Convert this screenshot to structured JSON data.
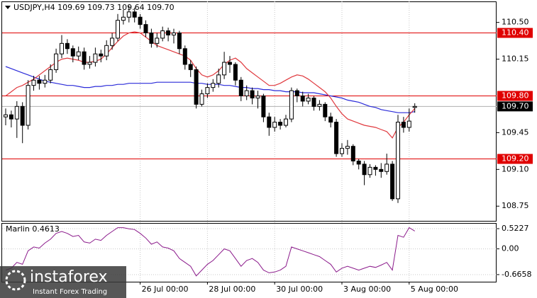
{
  "chart_data": {
    "type": "candlestick",
    "title": "USDJPY,H4  109.69 109.73 109.64 109.70",
    "bull_color": "#ffffff",
    "bear_color": "#000000",
    "open": [
      109.6,
      109.62,
      109.58,
      109.7,
      109.52,
      109.9,
      109.95,
      109.92,
      109.95,
      110.05,
      110.2,
      110.3,
      110.25,
      110.18,
      110.22,
      110.1,
      110.12,
      110.2,
      110.18,
      110.28,
      110.35,
      110.52,
      110.55,
      110.6,
      110.55,
      110.48,
      110.4,
      110.3,
      110.35,
      110.42,
      110.38,
      110.4,
      110.25,
      110.1,
      110.05,
      109.72,
      109.82,
      109.88,
      109.92,
      110.0,
      110.12,
      110.1,
      109.95,
      109.8,
      109.85,
      109.78,
      109.8,
      109.6,
      109.5,
      109.55,
      109.52,
      109.58,
      109.85,
      109.8,
      109.75,
      109.78,
      109.7,
      109.72,
      109.6,
      109.55,
      109.25,
      109.3,
      109.32,
      109.18,
      109.15,
      109.05,
      109.12,
      109.1,
      109.08,
      109.15,
      108.82,
      109.55,
      109.5,
      109.69
    ],
    "high": [
      109.68,
      109.66,
      109.75,
      109.74,
      109.95,
      109.99,
      109.99,
      110.0,
      110.1,
      110.25,
      110.38,
      110.34,
      110.28,
      110.27,
      110.26,
      110.18,
      110.26,
      110.24,
      110.33,
      110.4,
      110.58,
      110.62,
      110.66,
      110.64,
      110.58,
      110.52,
      110.44,
      110.4,
      110.46,
      110.45,
      110.44,
      110.42,
      110.28,
      110.14,
      110.08,
      109.86,
      109.92,
      109.96,
      110.06,
      110.22,
      110.18,
      110.12,
      109.98,
      109.9,
      109.88,
      109.85,
      109.82,
      109.64,
      109.6,
      109.58,
      109.62,
      109.88,
      109.87,
      109.84,
      109.82,
      109.8,
      109.76,
      109.74,
      109.64,
      109.58,
      109.35,
      109.38,
      109.34,
      109.2,
      109.18,
      109.15,
      109.14,
      109.16,
      109.25,
      109.18,
      109.62,
      109.6,
      109.68,
      109.73
    ],
    "low": [
      109.52,
      109.5,
      109.4,
      109.35,
      109.48,
      109.85,
      109.86,
      109.88,
      109.92,
      110.02,
      110.16,
      110.2,
      110.12,
      110.14,
      110.05,
      110.06,
      110.08,
      110.12,
      110.14,
      110.24,
      110.32,
      110.48,
      110.5,
      110.5,
      110.44,
      110.36,
      110.26,
      110.26,
      110.32,
      110.32,
      110.3,
      110.2,
      110.05,
      109.98,
      109.68,
      109.7,
      109.78,
      109.84,
      109.88,
      109.96,
      110.02,
      109.9,
      109.75,
      109.76,
      109.72,
      109.68,
      109.55,
      109.42,
      109.46,
      109.48,
      109.5,
      109.55,
      109.74,
      109.7,
      109.72,
      109.66,
      109.66,
      109.56,
      109.5,
      109.22,
      109.22,
      109.24,
      109.14,
      109.1,
      108.95,
      109.02,
      109.04,
      109.02,
      109.05,
      108.8,
      108.78,
      109.45,
      109.46,
      109.64
    ],
    "close": [
      109.62,
      109.58,
      109.7,
      109.52,
      109.9,
      109.95,
      109.92,
      109.95,
      110.05,
      110.2,
      110.3,
      110.25,
      110.18,
      110.22,
      110.1,
      110.12,
      110.2,
      110.18,
      110.28,
      110.35,
      110.52,
      110.55,
      110.6,
      110.55,
      110.48,
      110.4,
      110.3,
      110.35,
      110.42,
      110.38,
      110.4,
      110.25,
      110.1,
      110.05,
      109.72,
      109.82,
      109.88,
      109.92,
      110.0,
      110.12,
      110.1,
      109.95,
      109.8,
      109.85,
      109.78,
      109.8,
      109.6,
      109.5,
      109.55,
      109.52,
      109.58,
      109.85,
      109.8,
      109.75,
      109.78,
      109.7,
      109.72,
      109.6,
      109.55,
      109.25,
      109.3,
      109.32,
      109.18,
      109.15,
      109.05,
      109.12,
      109.1,
      109.08,
      109.15,
      108.82,
      109.55,
      109.5,
      109.56,
      109.7
    ],
    "lines": [
      {
        "color": "#2b2bd9",
        "values": [
          110.08,
          110.06,
          110.04,
          110.02,
          110.0,
          109.98,
          109.96,
          109.94,
          109.93,
          109.92,
          109.91,
          109.9,
          109.9,
          109.89,
          109.88,
          109.88,
          109.89,
          109.89,
          109.9,
          109.9,
          109.91,
          109.91,
          109.92,
          109.92,
          109.92,
          109.92,
          109.92,
          109.93,
          109.93,
          109.93,
          109.93,
          109.93,
          109.93,
          109.93,
          109.92,
          109.92,
          109.91,
          109.91,
          109.91,
          109.9,
          109.9,
          109.89,
          109.88,
          109.88,
          109.87,
          109.87,
          109.86,
          109.86,
          109.85,
          109.85,
          109.84,
          109.84,
          109.84,
          109.83,
          109.83,
          109.83,
          109.82,
          109.81,
          109.8,
          109.79,
          109.78,
          109.76,
          109.75,
          109.74,
          109.72,
          109.7,
          109.69,
          109.67,
          109.66,
          109.65,
          109.64,
          109.64,
          109.64,
          109.65
        ]
      },
      {
        "color": "#e0393e",
        "values": [
          109.8,
          109.84,
          109.88,
          109.9,
          109.93,
          109.96,
          110.0,
          110.04,
          110.08,
          110.12,
          110.15,
          110.16,
          110.15,
          110.14,
          110.12,
          110.12,
          110.13,
          110.15,
          110.2,
          110.26,
          110.32,
          110.37,
          110.4,
          110.41,
          110.4,
          110.36,
          110.32,
          110.28,
          110.26,
          110.24,
          110.22,
          110.2,
          110.18,
          110.14,
          110.06,
          110.0,
          109.98,
          110.0,
          110.04,
          110.1,
          110.14,
          110.16,
          110.12,
          110.06,
          110.02,
          109.98,
          109.94,
          109.9,
          109.9,
          109.92,
          109.95,
          109.98,
          110.0,
          109.99,
          109.96,
          109.92,
          109.88,
          109.84,
          109.78,
          109.7,
          109.63,
          109.58,
          109.56,
          109.54,
          109.52,
          109.51,
          109.5,
          109.48,
          109.46,
          109.4,
          109.5,
          109.55,
          109.62,
          109.68
        ]
      }
    ],
    "ylim": [
      108.61,
      110.7
    ],
    "yticks": [
      {
        "value": 110.5,
        "label": "110.50"
      },
      {
        "value": 110.15,
        "label": "110.15"
      },
      {
        "value": 109.45,
        "label": "109.45"
      },
      {
        "value": 109.1,
        "label": "109.10"
      },
      {
        "value": 108.75,
        "label": "108.75"
      }
    ],
    "levels": [
      {
        "value": 110.4,
        "label": "110.40"
      },
      {
        "value": 109.8,
        "label": "109.80"
      },
      {
        "value": 109.2,
        "label": "109.20"
      }
    ],
    "level_color": "#e00000",
    "current_price": {
      "value": 109.7,
      "label": "109.70"
    },
    "xticks": [
      {
        "value": 24,
        "label": "26 Jul 00:00"
      },
      {
        "value": 36,
        "label": "28 Jul 00:00"
      },
      {
        "value": 48,
        "label": "30 Jul 00:00"
      },
      {
        "value": 60,
        "label": "3 Aug 00:00"
      },
      {
        "value": 72,
        "label": "5 Aug 00:00"
      }
    ],
    "indicator": {
      "title": "Marlin 0.4613",
      "color": "#8b1a8b",
      "values": [
        -0.55,
        -0.5,
        -0.35,
        -0.4,
        -0.05,
        0.05,
        0.02,
        0.15,
        0.25,
        0.4,
        0.45,
        0.4,
        0.32,
        0.35,
        0.18,
        0.15,
        0.25,
        0.22,
        0.35,
        0.45,
        0.55,
        0.55,
        0.52,
        0.5,
        0.4,
        0.28,
        0.12,
        0.18,
        0.05,
        0.02,
        -0.05,
        -0.25,
        -0.35,
        -0.45,
        -0.7,
        -0.55,
        -0.4,
        -0.3,
        -0.15,
        0.0,
        -0.05,
        -0.25,
        -0.45,
        -0.3,
        -0.25,
        -0.35,
        -0.55,
        -0.62,
        -0.6,
        -0.55,
        -0.45,
        0.05,
        0.0,
        -0.05,
        -0.1,
        -0.15,
        -0.2,
        -0.3,
        -0.4,
        -0.6,
        -0.5,
        -0.45,
        -0.5,
        -0.55,
        -0.5,
        -0.45,
        -0.48,
        -0.42,
        -0.35,
        -0.55,
        0.35,
        0.3,
        0.55,
        0.4613
      ],
      "ylim": [
        -0.85,
        0.67
      ],
      "yticks": [
        0.5227,
        {
          "value": 0,
          "label": "0.00"
        },
        -0.6658
      ]
    },
    "watermark": {
      "brand": "instaforex",
      "slogan": "Instant Forex Trading"
    }
  }
}
